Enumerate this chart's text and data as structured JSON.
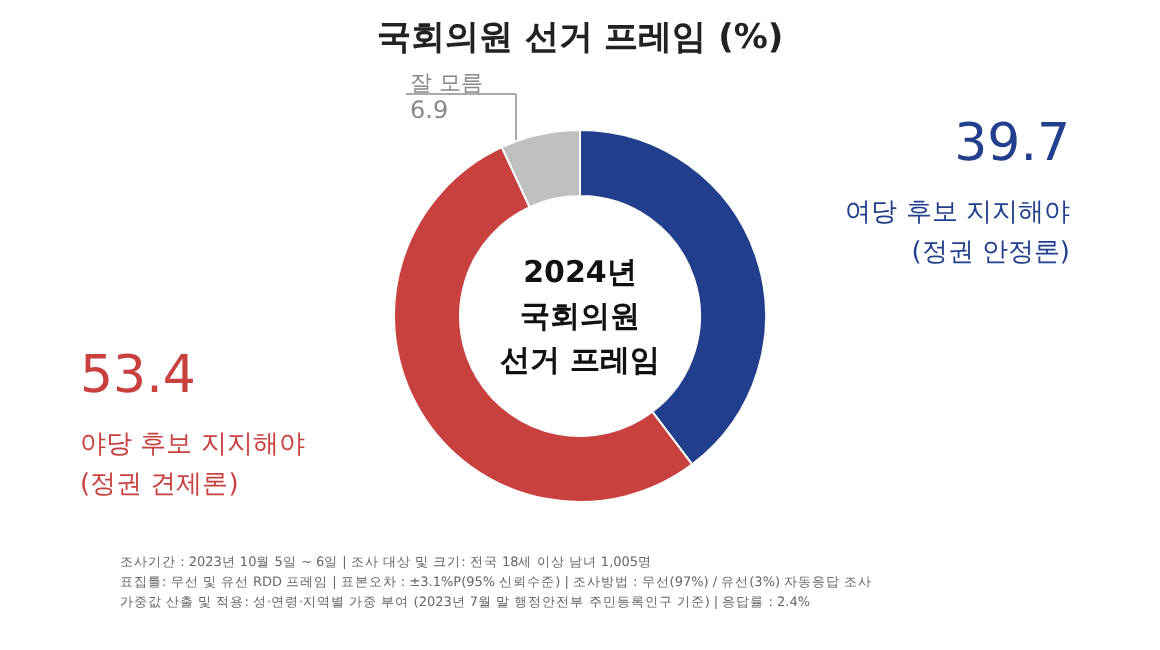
{
  "chart_data": {
    "type": "donut",
    "title": "국회의원 선거 프레임 (%)",
    "categories": [
      "여당 후보 지지해야\n(정권 안정론)",
      "야당 후보 지지해야\n(정권 견제론)",
      "잘 모름"
    ],
    "values": [
      39.7,
      53.4,
      6.9
    ],
    "colors": [
      "#213f8c",
      "#c8413f",
      "#c0c0c0"
    ],
    "data_labels": true,
    "annotations": [
      "2024년\n국회의원\n선거 프레임",
      "조사기간 : 2023년 10월 5일 ~ 6일 | 조사 대상 및 크기: 전국 18세 이상 남녀 1,005명\n표집틀: 무선 및 유선 RDD 프레임 | 표본오차 : ±3.1%P(95% 신뢰수준) | 조사방법 : 무선(97%) / 유선(3%) 자동응답 조사\n가중값 산출 및 적용: 성·연령·지역별 가중 부여 (2023년 7월 말 행정안전부 주민등록인구 기준) | 응답률 : 2.4%"
    ]
  }
}
